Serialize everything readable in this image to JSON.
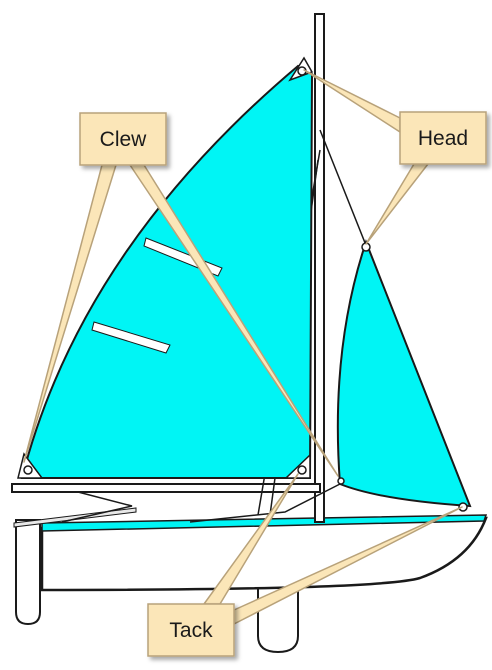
{
  "labels": {
    "clew": "Clew",
    "head": "Head",
    "tack": "Tack"
  },
  "colors": {
    "sail": "#00f5f5",
    "callout_fill": "#fbe6b8",
    "callout_stroke": "#b8a27a",
    "outline": "#1a1a1a",
    "corner_patch": "#ffffff"
  }
}
